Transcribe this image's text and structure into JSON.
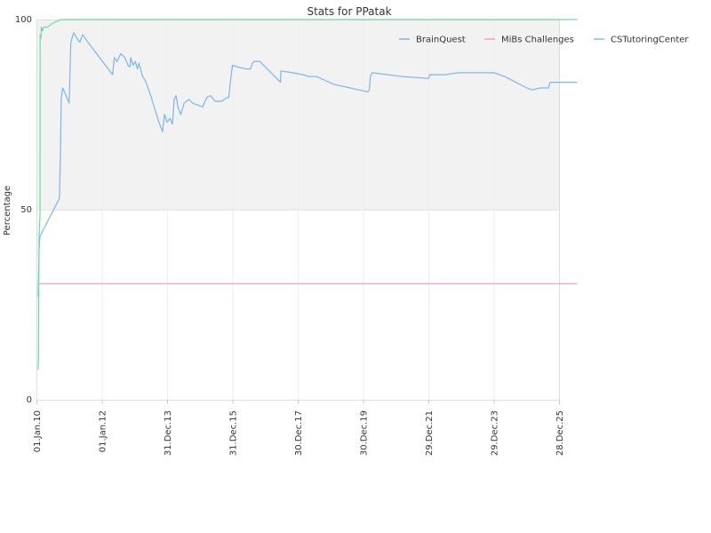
{
  "chart_data": {
    "type": "line",
    "title": "Stats for PPatak",
    "xlabel": "",
    "ylabel": "Percentage",
    "xlim": [
      "2010-01-01",
      "2025-12-28"
    ],
    "ylim": [
      0,
      100
    ],
    "x_ticks": [
      "01.Jan.10",
      "01.Jan.12",
      "31.Dec.13",
      "31.Dec.15",
      "30.Dec.17",
      "30.Dec.19",
      "29.Dec.21",
      "29.Dec.23",
      "28.Dec.25"
    ],
    "y_ticks": [
      0,
      50,
      100
    ],
    "grid": true,
    "shaded_band": [
      50,
      100
    ],
    "legend_position": "top-right",
    "series": [
      {
        "name": "BrainQuest",
        "color": "#7cb5ec",
        "points": [
          [
            "2010-01-20",
            27
          ],
          [
            "2010-02-01",
            40
          ],
          [
            "2010-02-10",
            43
          ],
          [
            "2010-09-15",
            53
          ],
          [
            "2010-09-25",
            63
          ],
          [
            "2010-10-05",
            79
          ],
          [
            "2010-10-20",
            82
          ],
          [
            "2010-11-10",
            81
          ],
          [
            "2011-01-01",
            78
          ],
          [
            "2011-01-20",
            94
          ],
          [
            "2011-02-20",
            96.5
          ],
          [
            "2011-04-01",
            95
          ],
          [
            "2011-05-01",
            94
          ],
          [
            "2011-06-01",
            96
          ],
          [
            "2011-08-01",
            94
          ],
          [
            "2012-05-01",
            85.5
          ],
          [
            "2012-05-20",
            90
          ],
          [
            "2012-06-20",
            89
          ],
          [
            "2012-08-01",
            91
          ],
          [
            "2012-09-15",
            90
          ],
          [
            "2012-10-20",
            88
          ],
          [
            "2012-11-10",
            87.5
          ],
          [
            "2012-11-20",
            90
          ],
          [
            "2012-12-15",
            88
          ],
          [
            "2013-01-10",
            89
          ],
          [
            "2013-02-01",
            87
          ],
          [
            "2013-02-20",
            88.5
          ],
          [
            "2013-03-10",
            87
          ],
          [
            "2013-04-01",
            85
          ],
          [
            "2013-05-01",
            84
          ],
          [
            "2013-07-01",
            80
          ],
          [
            "2013-10-01",
            73
          ],
          [
            "2013-11-10",
            70.5
          ],
          [
            "2013-12-01",
            75
          ],
          [
            "2014-01-01",
            73
          ],
          [
            "2014-02-01",
            74
          ],
          [
            "2014-03-01",
            72.5
          ],
          [
            "2014-03-20",
            79
          ],
          [
            "2014-04-10",
            80
          ],
          [
            "2014-05-01",
            77
          ],
          [
            "2014-06-01",
            75
          ],
          [
            "2014-07-10",
            78
          ],
          [
            "2014-09-01",
            79
          ],
          [
            "2014-10-15",
            78
          ],
          [
            "2015-02-01",
            77
          ],
          [
            "2015-03-20",
            79.5
          ],
          [
            "2015-05-01",
            80
          ],
          [
            "2015-06-20",
            78.5
          ],
          [
            "2015-09-01",
            78.5
          ],
          [
            "2015-11-01",
            79.5
          ],
          [
            "2015-11-20",
            79.5
          ],
          [
            "2015-12-10",
            84
          ],
          [
            "2016-01-01",
            88
          ],
          [
            "2016-03-01",
            87.5
          ],
          [
            "2016-06-01",
            87
          ],
          [
            "2016-07-20",
            87
          ],
          [
            "2016-08-10",
            88.5
          ],
          [
            "2016-09-01",
            89
          ],
          [
            "2016-11-01",
            89
          ],
          [
            "2017-06-20",
            83.5
          ],
          [
            "2017-06-25",
            86.5
          ],
          [
            "2017-11-01",
            86
          ],
          [
            "2018-03-01",
            85.5
          ],
          [
            "2018-05-01",
            85
          ],
          [
            "2018-08-01",
            85
          ],
          [
            "2018-11-01",
            84
          ],
          [
            "2019-02-01",
            83
          ],
          [
            "2020-02-20",
            81
          ],
          [
            "2020-03-10",
            81.5
          ],
          [
            "2020-03-20",
            85
          ],
          [
            "2020-04-10",
            86
          ],
          [
            "2021-03-15",
            85
          ],
          [
            "2022-01-01",
            84.5
          ],
          [
            "2022-01-15",
            85.5
          ],
          [
            "2022-07-01",
            85.5
          ],
          [
            "2022-12-01",
            86
          ],
          [
            "2023-01-01",
            86
          ],
          [
            "2023-06-01",
            86
          ],
          [
            "2024-01-01",
            86
          ],
          [
            "2024-05-01",
            85
          ],
          [
            "2025-01-01",
            82
          ],
          [
            "2025-03-01",
            81.5
          ],
          [
            "2025-06-01",
            82
          ],
          [
            "2025-09-01",
            82
          ],
          [
            "2025-09-20",
            83.5
          ],
          [
            "2026-07-20",
            83.5
          ]
        ]
      },
      {
        "name": "MiBs Challenges",
        "color": "#f7a1b5",
        "points": [
          [
            "2010-02-01",
            30.5
          ],
          [
            "2026-07-20",
            30.5
          ]
        ]
      },
      {
        "name": "CSTutoringCenter",
        "color": "#6fd9a8",
        "points": [
          [
            "2010-01-20",
            8
          ],
          [
            "2010-01-25",
            12
          ],
          [
            "2010-01-30",
            42
          ],
          [
            "2010-02-05",
            47
          ],
          [
            "2010-02-10",
            48
          ],
          [
            "2010-02-12",
            96
          ],
          [
            "2010-02-20",
            95
          ],
          [
            "2010-02-25",
            98
          ],
          [
            "2010-03-10",
            97
          ],
          [
            "2010-03-20",
            98
          ],
          [
            "2010-05-01",
            98
          ],
          [
            "2010-07-01",
            99
          ],
          [
            "2010-10-01",
            100
          ],
          [
            "2026-07-20",
            100
          ]
        ]
      }
    ]
  }
}
